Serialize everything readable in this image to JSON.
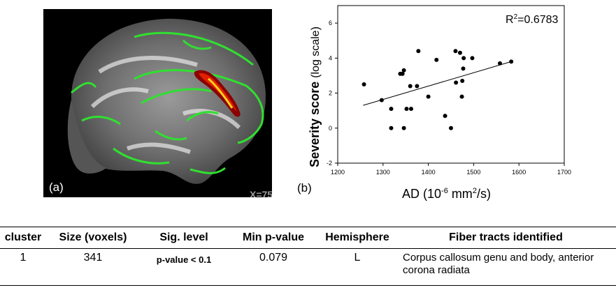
{
  "panel_a": {
    "label": "(a)",
    "coord": "X=75",
    "colors": {
      "background": "#000000",
      "tract": "#22dd22",
      "cluster_dark": "#8b0000",
      "cluster_mid": "#e02000",
      "cluster_hot": "#ffd21a"
    }
  },
  "panel_b": {
    "label": "(b)",
    "r2_prefix": "R",
    "r2_sup": "2",
    "r2_value": "=0.6783",
    "ylabel_bold": "Severity score",
    "ylabel_rest": "(log scale)",
    "xlabel_prefix": "AD (10",
    "xlabel_exp": "-6",
    "xlabel_mid": " mm",
    "xlabel_sup2": "2",
    "xlabel_suffix": "/s)"
  },
  "chart_data": {
    "type": "scatter",
    "title": "",
    "xlabel": "AD (10^-6 mm^2/s)",
    "ylabel": "Severity score (log scale)",
    "xlim": [
      1200,
      1700
    ],
    "ylim": [
      -2,
      7
    ],
    "xticks": [
      1200,
      1300,
      1400,
      1500,
      1600,
      1700
    ],
    "yticks": [
      -2,
      0,
      2,
      4,
      6
    ],
    "annotation": "R2=0.6783",
    "points": [
      {
        "x": 1258,
        "y": 2.5
      },
      {
        "x": 1297,
        "y": 1.6
      },
      {
        "x": 1318,
        "y": 1.1
      },
      {
        "x": 1318,
        "y": 0.0
      },
      {
        "x": 1338,
        "y": 3.1
      },
      {
        "x": 1343,
        "y": 3.1
      },
      {
        "x": 1346,
        "y": 3.3
      },
      {
        "x": 1346,
        "y": 0.0
      },
      {
        "x": 1352,
        "y": 1.1
      },
      {
        "x": 1360,
        "y": 2.4
      },
      {
        "x": 1362,
        "y": 1.1
      },
      {
        "x": 1375,
        "y": 2.4
      },
      {
        "x": 1378,
        "y": 4.4
      },
      {
        "x": 1400,
        "y": 1.8
      },
      {
        "x": 1418,
        "y": 3.9
      },
      {
        "x": 1437,
        "y": 0.7
      },
      {
        "x": 1450,
        "y": 0.0
      },
      {
        "x": 1460,
        "y": 4.4
      },
      {
        "x": 1461,
        "y": 2.6
      },
      {
        "x": 1470,
        "y": 4.3
      },
      {
        "x": 1474,
        "y": 1.8
      },
      {
        "x": 1475,
        "y": 2.7
      },
      {
        "x": 1477,
        "y": 3.4
      },
      {
        "x": 1478,
        "y": 4.0
      },
      {
        "x": 1497,
        "y": 4.0
      },
      {
        "x": 1558,
        "y": 3.7
      },
      {
        "x": 1583,
        "y": 3.8
      }
    ],
    "trendline": {
      "x": [
        1256,
        1583
      ],
      "y": [
        1.3,
        3.8
      ]
    }
  },
  "table": {
    "headers": [
      "cluster",
      "Size (voxels)",
      "Sig. level",
      "Min p-value",
      "Hemisphere",
      "Fiber tracts identified"
    ],
    "rows": [
      {
        "cluster": "1",
        "size": "341",
        "sig": "p-value < 0.1",
        "min_p": "0.079",
        "hemisphere": "L",
        "tracts": "Corpus callosum genu and body, anterior corona radiata"
      }
    ]
  }
}
